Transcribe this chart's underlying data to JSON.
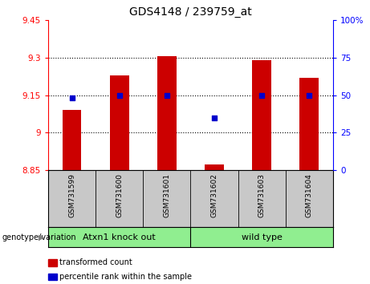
{
  "title": "GDS4148 / 239759_at",
  "samples": [
    "GSM731599",
    "GSM731600",
    "GSM731601",
    "GSM731602",
    "GSM731603",
    "GSM731604"
  ],
  "red_values": [
    9.09,
    9.23,
    9.305,
    8.875,
    9.29,
    9.22
  ],
  "blue_percentiles": [
    48,
    50,
    50,
    35,
    50,
    50
  ],
  "ylim_left": [
    8.85,
    9.45
  ],
  "yticks_left": [
    8.85,
    9.0,
    9.15,
    9.3,
    9.45
  ],
  "ytick_labels_left": [
    "8.85",
    "9",
    "9.15",
    "9.3",
    "9.45"
  ],
  "ylim_right": [
    0,
    100
  ],
  "yticks_right": [
    0,
    25,
    50,
    75,
    100
  ],
  "ytick_labels_right": [
    "0",
    "25",
    "50",
    "75",
    "100%"
  ],
  "group_label": "genotype/variation",
  "group1_label": "Atxn1 knock out",
  "group2_label": "wild type",
  "bar_color": "#CC0000",
  "dot_color": "#0000CC",
  "bar_baseline": 8.85,
  "legend_red": "transformed count",
  "legend_blue": "percentile rank within the sample",
  "background_color": "#FFFFFF",
  "plot_bg_color": "#FFFFFF",
  "label_area_color": "#C8C8C8",
  "group_area_color": "#90EE90",
  "dotted_lines": [
    9.0,
    9.15,
    9.3
  ]
}
